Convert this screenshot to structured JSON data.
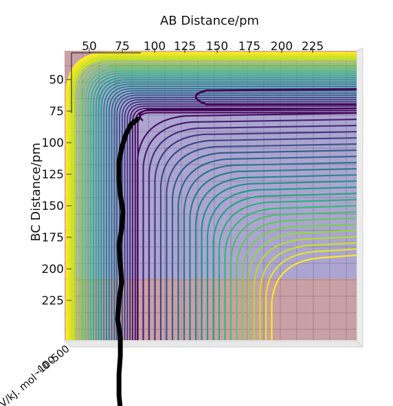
{
  "chart_data": {
    "type": "contour",
    "view": "3d-surface-contour-top-view",
    "xlabel": "AB Distance/pm",
    "ylabel": "BC Distance/pm",
    "zlabel": "V/kJ. mol⁻¹",
    "x_ticks": [
      "50",
      "75",
      "100",
      "125",
      "150",
      "175",
      "200",
      "225"
    ],
    "y_ticks": [
      "50",
      "75",
      "100",
      "125",
      "150",
      "175",
      "200",
      "225"
    ],
    "z_ticks": [
      "-100",
      "0",
      "-500"
    ],
    "xlim": [
      30,
      250
    ],
    "ylim": [
      30,
      250
    ],
    "colormap": "viridis",
    "contour_levels": 28,
    "background_plane_colors": [
      "#c9a0a5",
      "#a8a6d8"
    ],
    "grid": true,
    "trajectory": {
      "color": "#000000",
      "points": [
        [
          85,
          82
        ],
        [
          80,
          86
        ],
        [
          76,
          94
        ],
        [
          73,
          104
        ],
        [
          71,
          115
        ],
        [
          71,
          128
        ],
        [
          72,
          140
        ],
        [
          74,
          152
        ],
        [
          73,
          165
        ],
        [
          71,
          178
        ],
        [
          72,
          192
        ],
        [
          73,
          206
        ],
        [
          71,
          220
        ],
        [
          70,
          234
        ],
        [
          72,
          248
        ],
        [
          72,
          262
        ],
        [
          71,
          276
        ],
        [
          71,
          292
        ],
        [
          72,
          302
        ]
      ]
    }
  }
}
